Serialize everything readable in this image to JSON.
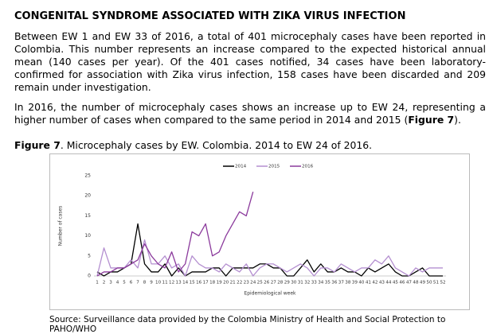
{
  "header": {
    "title": "CONGENITAL SYNDROME ASSOCIATED WITH ZIKA VIRUS INFECTION"
  },
  "paragraphs": [
    [
      "Between EW 1 and EW 33 of 2016, a total of 401 microcephaly cases have been reported in Colombia. This number represents an increase compared to the expected historical annual mean (140 cases per year). Of the 401 cases notified, 34 cases have been laboratory-confirmed for association with Zika virus infection, 158 cases have been discarded and 209 remain under investigation."
    ],
    [
      "In 2016, the number of microcephaly cases shows an increase up to EW 24, representing a higher number of cases when compared to the same period in 2014 and 2015 (",
      "Figure 7",
      ")."
    ]
  ],
  "figure": {
    "label": "Figure 7",
    "caption": ". Microcephaly cases by EW. Colombia. 2014 to EW 24 of 2016."
  },
  "chart_data": {
    "type": "line",
    "x_label": "Epidemiological week",
    "y_label": "Number of cases",
    "categories": [
      "1",
      "2",
      "3",
      "4",
      "5",
      "6",
      "7",
      "8",
      "9",
      "10",
      "11",
      "12",
      "13",
      "14",
      "15",
      "16",
      "17",
      "18",
      "19",
      "20",
      "21",
      "22",
      "23",
      "24",
      "25",
      "26",
      "27",
      "28",
      "29",
      "30",
      "31",
      "32",
      "33",
      "34",
      "35",
      "36",
      "37",
      "38",
      "39",
      "40",
      "41",
      "42",
      "43",
      "44",
      "45",
      "46",
      "47",
      "48",
      "49",
      "50",
      "51",
      "52"
    ],
    "ylim": [
      0,
      25
    ],
    "yticks": [
      0,
      5,
      10,
      15,
      20,
      25
    ],
    "grid": false,
    "legend": "top",
    "series": [
      {
        "name": "2014",
        "color": "#000000",
        "values": [
          1,
          0,
          1,
          1,
          2,
          3,
          13,
          3,
          1,
          1,
          3,
          0,
          2,
          0,
          1,
          1,
          1,
          2,
          2,
          0,
          2,
          2,
          2,
          2,
          3,
          3,
          2,
          2,
          0,
          0,
          2,
          4,
          1,
          3,
          1,
          1,
          2,
          1,
          1,
          0,
          2,
          1,
          2,
          3,
          1,
          0,
          0,
          1,
          2,
          0,
          0,
          0
        ]
      },
      {
        "name": "2015",
        "color": "#b48fd0",
        "values": [
          0,
          7,
          2,
          2,
          2,
          4,
          2,
          9,
          3,
          3,
          5,
          2,
          3,
          0,
          5,
          3,
          2,
          2,
          1,
          3,
          2,
          1,
          3,
          0,
          2,
          3,
          3,
          2,
          1,
          2,
          3,
          2,
          0,
          2,
          2,
          1,
          3,
          2,
          1,
          2,
          2,
          4,
          3,
          5,
          2,
          1,
          0,
          2,
          1,
          2,
          2,
          2
        ]
      },
      {
        "name": "2016",
        "color": "#8b3a9c",
        "values": [
          0,
          1,
          1,
          2,
          2,
          3,
          4,
          8,
          5,
          3,
          2,
          6,
          1,
          3,
          11,
          10,
          13,
          5,
          6,
          10,
          13,
          16,
          15,
          21,
          null,
          null,
          null,
          null,
          null,
          null,
          null,
          null,
          null,
          null,
          null,
          null,
          null,
          null,
          null,
          null,
          null,
          null,
          null,
          null,
          null,
          null,
          null,
          null,
          null,
          null,
          null,
          null
        ]
      }
    ]
  },
  "source": "Source: Surveillance data provided by the Colombia Ministry of Health and Social Protection to PAHO/WHO"
}
